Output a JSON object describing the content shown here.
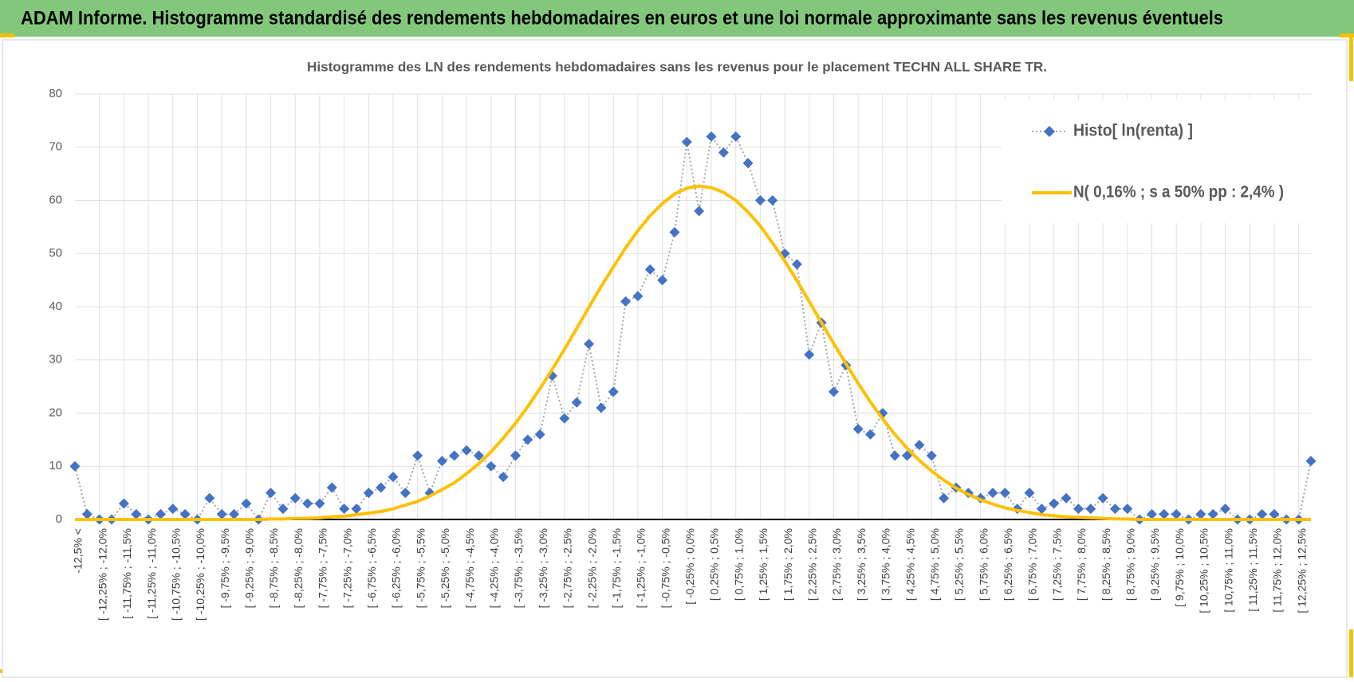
{
  "header": {
    "title": "ADAM Informe. Histogramme standardisé des rendements hebdomadaires en euros et une loi normale approximante sans les revenus éventuels"
  },
  "chart_data": {
    "type": "line",
    "title": "Histogramme  des LN des rendements hebdomadaires sans les revenus pour le placement TECHN ALL SHARE TR.",
    "categories": [
      "-12,5% <",
      null,
      "[ -12,25% ; -12,0%",
      null,
      "[ -11,75% ; -11,5%",
      null,
      "[ -11,25% ; -11,0%",
      null,
      "[ -10,75% ; -10,5%",
      null,
      "[ -10,25% ; -10,0%",
      null,
      "[ -9,75% ; -9,5%",
      null,
      "[ -9,25% ; -9,0%",
      null,
      "[ -8,75% ; -8,5%",
      null,
      "[ -8,25% ; -8,0%",
      null,
      "[ -7,75% ; -7,5%",
      null,
      "[ -7,25% ; -7,0%",
      null,
      "[ -6,75% ; -6,5%",
      null,
      "[ -6,25% ; -6,0%",
      null,
      "[ -5,75% ; -5,5%",
      null,
      "[ -5,25% ; -5,0%",
      null,
      "[ -4,75% ; -4,5%",
      null,
      "[ -4,25% ; -4,0%",
      null,
      "[ -3,75% ; -3,5%",
      null,
      "[ -3,25% ; -3,0%",
      null,
      "[ -2,75% ; -2,5%",
      null,
      "[ -2,25% ; -2,0%",
      null,
      "[ -1,75% ; -1,5%",
      null,
      "[ -1,25% ; -1,0%",
      null,
      "[ -0,75% ; -0,5%",
      null,
      "[ -0,25% ; 0,0%",
      null,
      "[ 0,25% ; 0,5%",
      null,
      "[ 0,75% ; 1,0%",
      null,
      "[ 1,25% ; 1,5%",
      null,
      "[ 1,75% ; 2,0%",
      null,
      "[ 2,25% ; 2,5%",
      null,
      "[ 2,75% ; 3,0%",
      null,
      "[ 3,25% ; 3,5%",
      null,
      "[ 3,75% ; 4,0%",
      null,
      "[ 4,25% ; 4,5%",
      null,
      "[ 4,75% ; 5,0%",
      null,
      "[ 5,25% ; 5,5%",
      null,
      "[ 5,75% ; 6,0%",
      null,
      "[ 6,25% ; 6,5%",
      null,
      "[ 6,75% ; 7,0%",
      null,
      "[ 7,25% ; 7,5%",
      null,
      "[ 7,75% ; 8,0%",
      null,
      "[ 8,25% ; 8,5%",
      null,
      "[ 8,75% ; 9,0%",
      null,
      "[ 9,25% ; 9,5%",
      null,
      "[ 9,75% ; 10,0%",
      null,
      "[ 10,25% ; 10,5%",
      null,
      "[ 10,75% ; 11,0%",
      null,
      "[ 11,25% ; 11,5%",
      null,
      "[ 11,75% ; 12,0%",
      null,
      "[ 12,25% ; 12,5%",
      null
    ],
    "series": [
      {
        "name": "Histo[ ln(renta) ]",
        "color": "#4472c4",
        "values": [
          10,
          1,
          0,
          0,
          3,
          1,
          0,
          1,
          2,
          1,
          0,
          4,
          1,
          1,
          3,
          0,
          5,
          2,
          4,
          3,
          3,
          6,
          2,
          2,
          5,
          6,
          8,
          5,
          12,
          5,
          11,
          12,
          13,
          12,
          10,
          8,
          12,
          15,
          16,
          27,
          19,
          22,
          33,
          21,
          24,
          41,
          42,
          47,
          45,
          54,
          71,
          58,
          72,
          69,
          72,
          67,
          60,
          60,
          50,
          48,
          31,
          37,
          24,
          29,
          17,
          16,
          20,
          12,
          12,
          14,
          12,
          4,
          6,
          5,
          4,
          5,
          5,
          2,
          5,
          2,
          3,
          4,
          2,
          2,
          4,
          2,
          2,
          0,
          1,
          1,
          1,
          0,
          1,
          1,
          2,
          0,
          0,
          1,
          1,
          0,
          0,
          11
        ]
      },
      {
        "name": "N( 0,16% ; s a 50% pp : 2,4% )",
        "color": "#ffc000",
        "values": [
          0,
          0,
          0,
          0,
          0,
          0,
          0,
          0,
          0,
          0,
          0,
          0,
          0,
          0,
          0,
          0,
          0.1,
          0.1,
          0.2,
          0.2,
          0.3,
          0.5,
          0.6,
          0.9,
          1.2,
          1.5,
          2.0,
          2.7,
          3.4,
          4.4,
          5.6,
          6.9,
          8.6,
          10.5,
          12.7,
          15.3,
          18.1,
          21.2,
          24.6,
          28.2,
          32.0,
          35.9,
          39.9,
          43.8,
          47.5,
          51.1,
          54.3,
          57.1,
          59.4,
          61.2,
          62.3,
          62.7,
          62.4,
          61.5,
          60.0,
          57.8,
          55.2,
          52.0,
          48.6,
          44.9,
          41.0,
          37.0,
          33.1,
          29.3,
          25.6,
          22.1,
          18.9,
          16.0,
          13.4,
          11.1,
          9.1,
          7.4,
          5.9,
          4.7,
          3.7,
          2.9,
          2.2,
          1.7,
          1.3,
          0.9,
          0.7,
          0.5,
          0.4,
          0.3,
          0.2,
          0.1,
          0.1,
          0,
          0,
          0,
          0,
          0,
          0,
          0,
          0,
          0,
          0,
          0,
          0,
          0,
          0,
          0
        ]
      }
    ],
    "ylim": [
      0,
      80
    ],
    "yticks": [
      0,
      10,
      20,
      30,
      40,
      50,
      60,
      70,
      80
    ],
    "grid": true,
    "legend": "top-right"
  }
}
